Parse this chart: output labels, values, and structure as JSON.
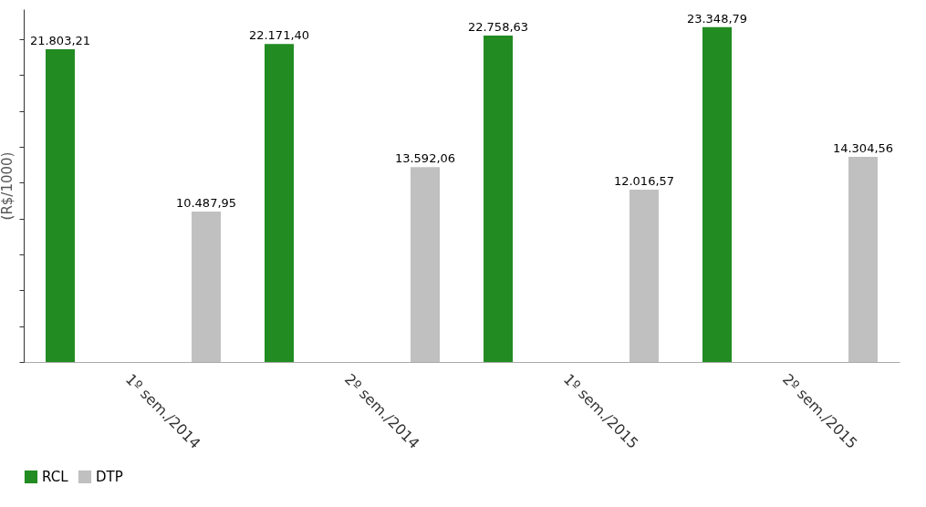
{
  "chart_data": {
    "type": "bar",
    "ylabel": "(R$/1000)",
    "categories": [
      "1º sem./2014",
      "2º sem./2014",
      "1º sem./2015",
      "2º sem./2015"
    ],
    "series": [
      {
        "name": "RCL",
        "color": "#228b22",
        "values": [
          21803.21,
          22171.4,
          22758.63,
          23348.79
        ],
        "value_labels": [
          "21.803,21",
          "22.171,40",
          "22.758,63",
          "23.348,79"
        ]
      },
      {
        "name": "DTP",
        "color": "#c0c0c0",
        "values": [
          10487.95,
          13592.06,
          12016.57,
          14304.56
        ],
        "value_labels": [
          "10.487,95",
          "13.592,06",
          "12.016,57",
          "14.304,56"
        ]
      }
    ],
    "ylim": [
      0,
      24600
    ],
    "yticks": [
      {
        "value": 0,
        "label": null
      },
      {
        "value": 2500,
        "label": null
      },
      {
        "value": 5000,
        "label": null
      },
      {
        "value": 7500,
        "label": null
      },
      {
        "value": 10000,
        "label": null
      },
      {
        "value": 12500,
        "label": null
      },
      {
        "value": 15000,
        "label": null
      },
      {
        "value": 17500,
        "label": null
      },
      {
        "value": 20000,
        "label": null
      },
      {
        "value": 22500,
        "label": null
      }
    ],
    "legend": "bottom",
    "grid": false
  }
}
